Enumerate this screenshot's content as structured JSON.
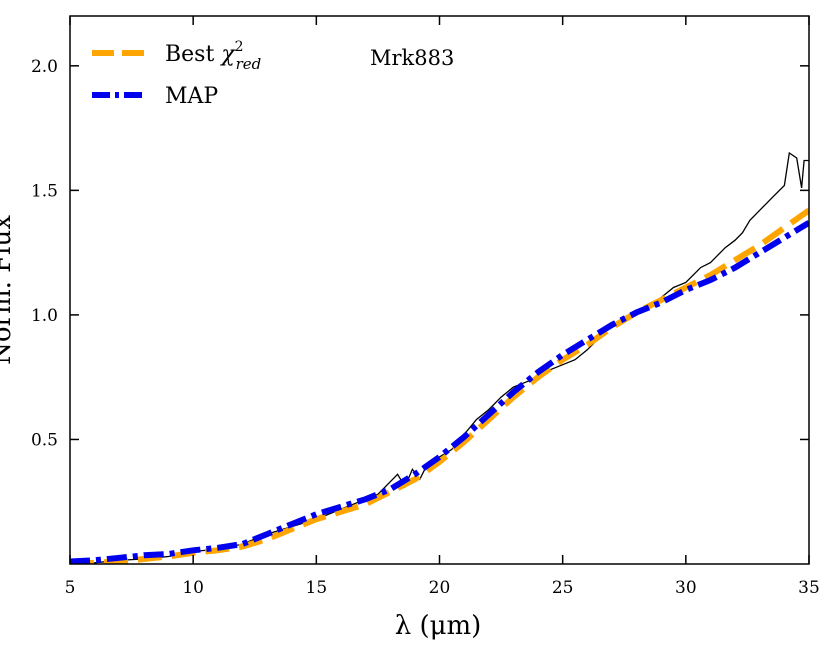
{
  "chart_data": {
    "type": "line",
    "xlabel": "λ (μm)",
    "ylabel": "Norm. Flux",
    "xlim": [
      5,
      35
    ],
    "ylim": [
      0,
      2.2
    ],
    "xticks": [
      5,
      10,
      15,
      20,
      25,
      30,
      35
    ],
    "yticks": [
      0.5,
      1.0,
      1.5,
      2.0
    ],
    "xtick_labels": [
      "5",
      "10",
      "15",
      "20",
      "25",
      "30",
      "35"
    ],
    "ytick_labels": [
      "0.5",
      "1.0",
      "1.5",
      "2.0"
    ],
    "grid": false,
    "legend_position": "top-left",
    "annotation": "Mrk883",
    "colors": {
      "data": "#000000",
      "best": "#FFA500",
      "map": "#0000EE"
    },
    "legend": [
      {
        "label_main": "Best ",
        "label_chi": "χ",
        "label_sup": "2",
        "label_sub": "red",
        "color": "#FFA500",
        "style": "dashed"
      },
      {
        "label_main": "MAP",
        "color": "#0000EE",
        "style": "dashdot"
      }
    ],
    "observed": {
      "x": [
        5.2,
        6,
        7,
        8,
        9,
        10,
        11,
        12,
        13,
        14,
        15,
        16,
        17,
        17.5,
        18,
        18.3,
        18.6,
        18.9,
        19.2,
        19.5,
        20,
        20.5,
        21,
        21.5,
        22,
        22.5,
        23,
        23.5,
        24,
        24.5,
        25,
        25.5,
        26,
        26.3,
        26.6,
        27,
        27.5,
        28,
        28.5,
        29,
        29.5,
        30,
        30.3,
        30.6,
        31,
        31.3,
        31.6,
        32,
        32.3,
        32.6,
        33,
        33.3,
        33.6,
        34,
        34.2,
        34.5,
        34.7,
        34.8,
        35
      ],
      "y": [
        0.0,
        0.005,
        0.015,
        0.02,
        0.03,
        0.05,
        0.06,
        0.08,
        0.12,
        0.15,
        0.18,
        0.22,
        0.26,
        0.28,
        0.33,
        0.36,
        0.31,
        0.38,
        0.34,
        0.4,
        0.43,
        0.46,
        0.52,
        0.58,
        0.62,
        0.67,
        0.71,
        0.73,
        0.75,
        0.78,
        0.8,
        0.82,
        0.86,
        0.89,
        0.92,
        0.96,
        0.99,
        1.0,
        1.04,
        1.07,
        1.11,
        1.13,
        1.16,
        1.19,
        1.21,
        1.24,
        1.27,
        1.3,
        1.33,
        1.38,
        1.42,
        1.45,
        1.48,
        1.52,
        1.65,
        1.63,
        1.51,
        1.62,
        1.62
      ]
    },
    "series": [
      {
        "x": [
          5,
          6,
          7,
          8,
          9,
          10,
          11,
          12,
          13,
          14,
          15,
          16,
          17,
          18,
          19,
          20,
          21,
          22,
          23,
          24,
          25,
          26,
          27,
          28,
          29,
          30,
          31,
          32,
          33,
          34,
          35
        ],
        "y": [
          0.0,
          0.005,
          0.01,
          0.02,
          0.03,
          0.045,
          0.055,
          0.07,
          0.1,
          0.14,
          0.18,
          0.21,
          0.24,
          0.29,
          0.34,
          0.41,
          0.49,
          0.58,
          0.67,
          0.75,
          0.82,
          0.88,
          0.95,
          1.01,
          1.06,
          1.11,
          1.16,
          1.22,
          1.28,
          1.35,
          1.42
        ]
      },
      {
        "x": [
          5,
          6,
          7,
          8,
          9,
          10,
          11,
          12,
          13,
          14,
          15,
          16,
          17,
          18,
          19,
          20,
          21,
          22,
          23,
          24,
          25,
          26,
          27,
          28,
          29,
          30,
          31,
          32,
          33,
          34,
          35
        ],
        "y": [
          0.01,
          0.015,
          0.025,
          0.035,
          0.04,
          0.055,
          0.065,
          0.08,
          0.12,
          0.16,
          0.2,
          0.23,
          0.26,
          0.3,
          0.36,
          0.43,
          0.51,
          0.6,
          0.69,
          0.77,
          0.84,
          0.9,
          0.96,
          1.01,
          1.05,
          1.1,
          1.14,
          1.19,
          1.25,
          1.31,
          1.37
        ]
      }
    ]
  }
}
